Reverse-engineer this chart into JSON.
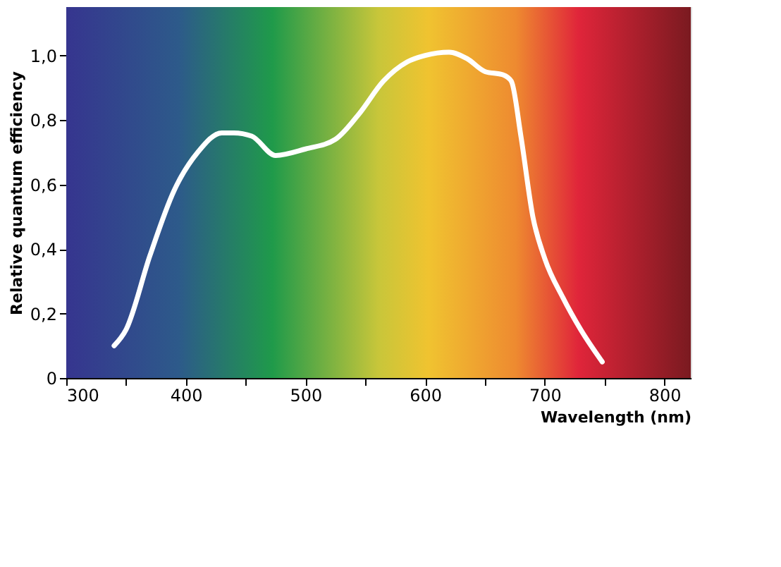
{
  "chart_data": {
    "type": "line",
    "xlabel": "Wavelength (nm)",
    "ylabel": "Relative quantum efficiency",
    "xlim": [
      300,
      822
    ],
    "ylim": [
      0,
      1.15
    ],
    "xticks": [
      300,
      {
        "value": 350,
        "label": null
      },
      400,
      {
        "value": 450,
        "label": null
      },
      500,
      {
        "value": 550,
        "label": null
      },
      600,
      {
        "value": 650,
        "label": null
      },
      700,
      {
        "value": 750,
        "label": null
      },
      800
    ],
    "yticks": [
      0,
      {
        "value": 0.2,
        "label": "0,2"
      },
      {
        "value": 0.4,
        "label": "0,4"
      },
      {
        "value": 0.6,
        "label": "0,6"
      },
      {
        "value": 0.8,
        "label": "0,8"
      },
      {
        "value": 1.0,
        "label": "1,0"
      }
    ],
    "series": [
      {
        "color": "#ffffff",
        "line_style": "solid",
        "x": [
          340,
          350,
          370,
          390,
          410,
          430,
          440,
          455,
          475,
          500,
          525,
          545,
          565,
          585,
          600,
          620,
          635,
          650,
          665,
          672,
          680,
          690,
          700,
          715,
          730,
          748
        ],
        "values": [
          0.1,
          0.15,
          0.38,
          0.58,
          0.7,
          0.76,
          0.76,
          0.75,
          0.69,
          0.71,
          0.74,
          0.82,
          0.92,
          0.98,
          1.0,
          1.01,
          0.99,
          0.95,
          0.94,
          0.92,
          0.75,
          0.5,
          0.37,
          0.25,
          0.15,
          0.05
        ]
      }
    ]
  }
}
